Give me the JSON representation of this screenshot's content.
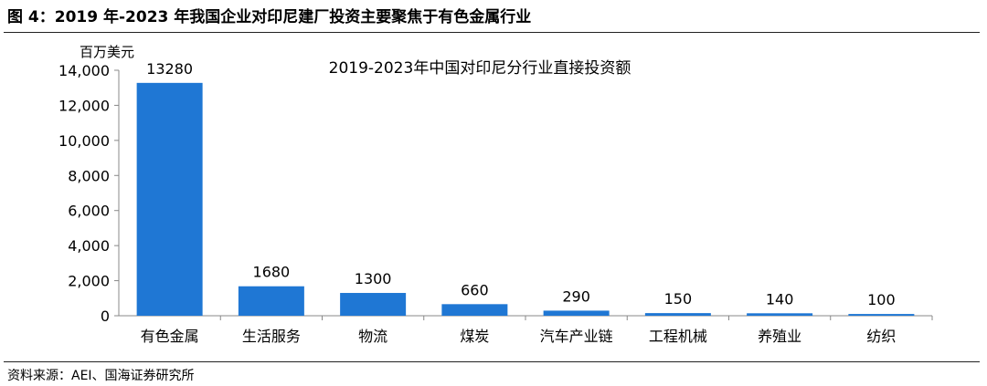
{
  "figure_title": "图 4：2019 年-2023 年我国企业对印尼建厂投资主要聚焦于有色金属行业",
  "source": "资料来源：AEI、国海证券研究所",
  "colors": {
    "bar": "#1f77d4",
    "axis": "#888888",
    "text": "#000000"
  },
  "chart_data": {
    "type": "bar",
    "title": "2019-2023年中国对印尼分行业直接投资额",
    "ylabel": "百万美元",
    "xlabel": "",
    "categories": [
      "有色金属",
      "生活服务",
      "物流",
      "煤炭",
      "汽车产业链",
      "工程机械",
      "养殖业",
      "纺织"
    ],
    "values": [
      13280,
      1680,
      1300,
      660,
      290,
      150,
      140,
      100
    ],
    "value_labels": [
      "13280",
      "1680",
      "1300",
      "660",
      "290",
      "150",
      "140",
      "100"
    ],
    "ylim": [
      0,
      14000
    ],
    "yticks": [
      0,
      2000,
      4000,
      6000,
      8000,
      10000,
      12000,
      14000
    ],
    "ytick_labels": [
      "0",
      "2,000",
      "4,000",
      "6,000",
      "8,000",
      "10,000",
      "12,000",
      "14,000"
    ],
    "grid": false,
    "legend": "none"
  }
}
